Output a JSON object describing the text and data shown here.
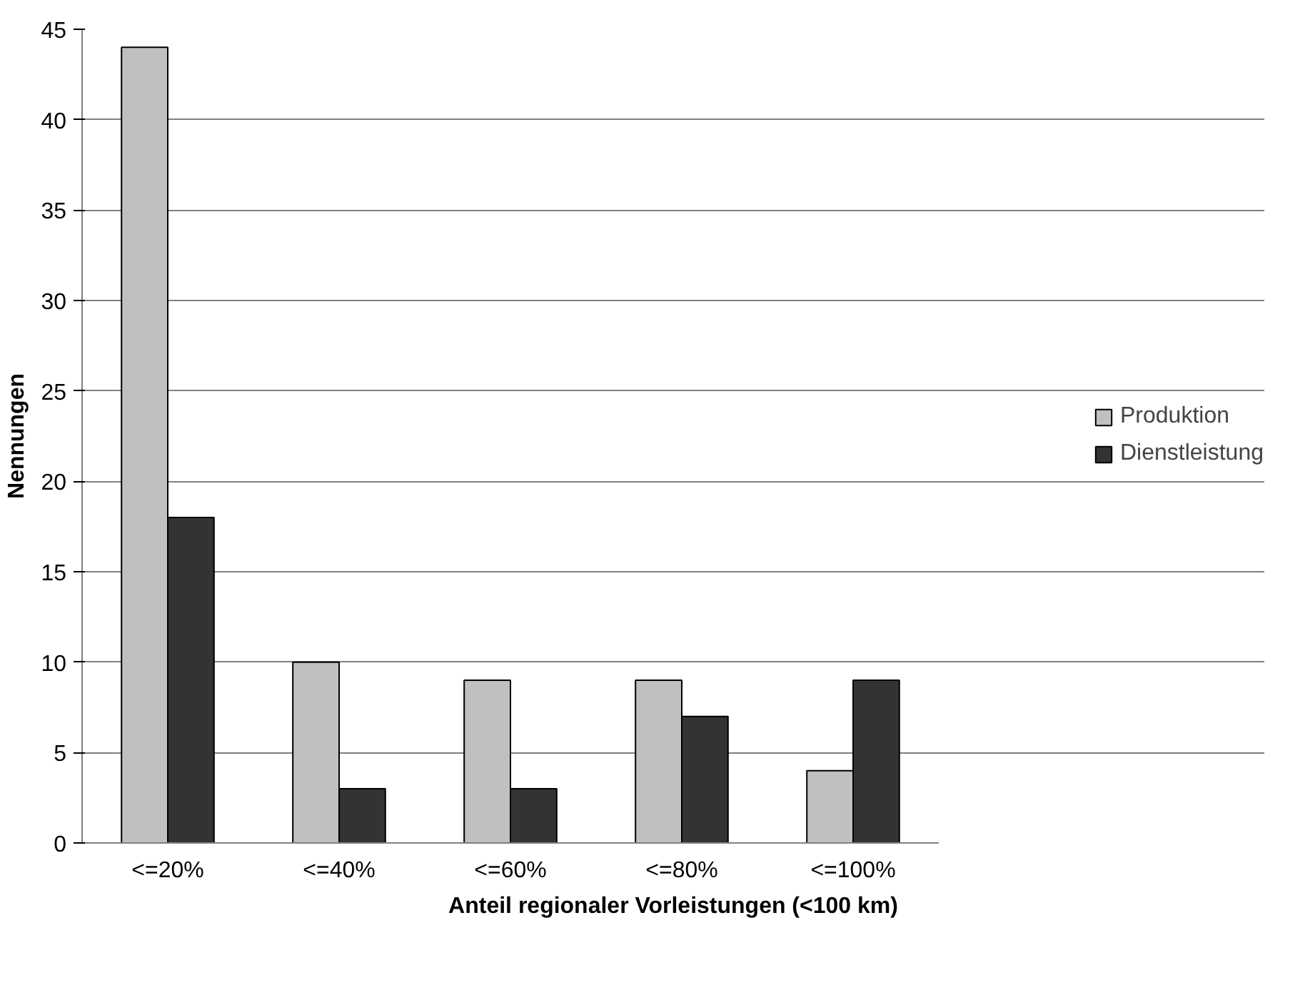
{
  "chart_data": {
    "type": "bar",
    "xlabel": "Anteil regionaler Vorleistungen (<100 km)",
    "ylabel": "Nennungen",
    "categories": [
      "<=20%",
      "<=40%",
      "<=60%",
      "<=80%",
      "<=100%"
    ],
    "series": [
      {
        "name": "Produktion",
        "color": "#c0c0c0",
        "values": [
          44,
          10,
          9,
          9,
          4
        ]
      },
      {
        "name": "Dienstleistung",
        "color": "#333333",
        "values": [
          18,
          3,
          3,
          7,
          9
        ]
      }
    ],
    "ylim": [
      0,
      45
    ],
    "yticks": [
      0,
      5,
      10,
      15,
      20,
      25,
      30,
      35,
      40,
      45
    ],
    "grid": "y",
    "legend": "right"
  }
}
